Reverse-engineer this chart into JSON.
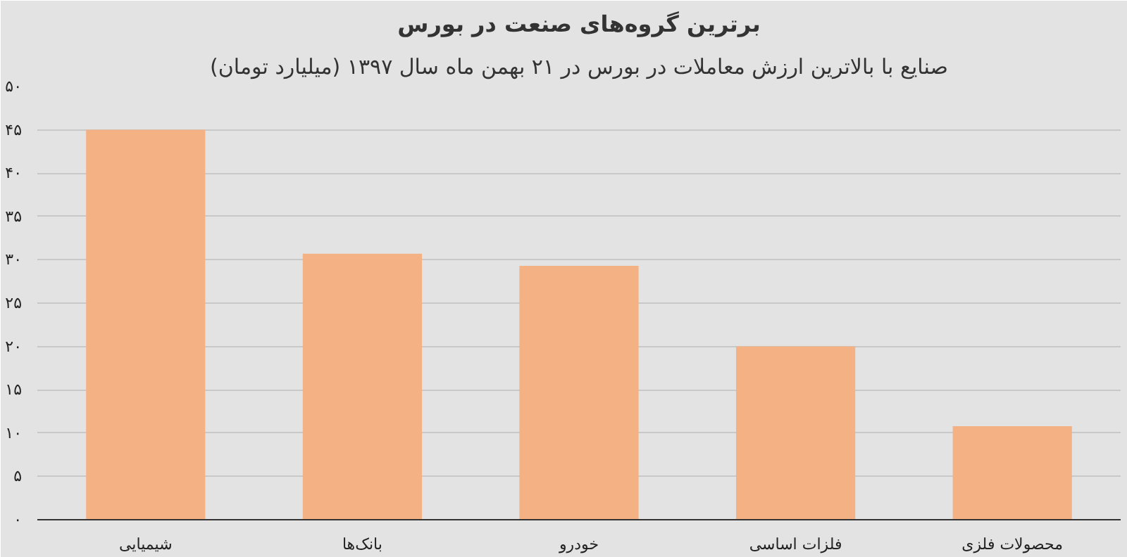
{
  "chart_data": {
    "type": "bar",
    "title": "برترین گروه‌های صنعت در بورس",
    "subtitle": "صنایع با بالاترین ارزش معاملات در بورس در ۲۱ بهمن ماه سال ۱۳۹۷ (میلیارد تومان)",
    "categories": [
      "شیمیایی",
      "بانک‌ها",
      "خودرو",
      "فلزات اساسی",
      "محصولات فلزی"
    ],
    "values": [
      45,
      30.7,
      29.3,
      20,
      10.8
    ],
    "color": "#f4b183",
    "ylim": [
      0,
      50
    ],
    "yticks": [
      {
        "value": 0,
        "label": "۰"
      },
      {
        "value": 5,
        "label": "۵"
      },
      {
        "value": 10,
        "label": "۱۰"
      },
      {
        "value": 15,
        "label": "۱۵"
      },
      {
        "value": 20,
        "label": "۲۰"
      },
      {
        "value": 25,
        "label": "۲۵"
      },
      {
        "value": 30,
        "label": "۳۰"
      },
      {
        "value": 35,
        "label": "۳۵"
      },
      {
        "value": 40,
        "label": "۴۰"
      },
      {
        "value": 45,
        "label": "۴۵"
      },
      {
        "value": 50,
        "label": "۵۰"
      }
    ],
    "grid": "y"
  }
}
